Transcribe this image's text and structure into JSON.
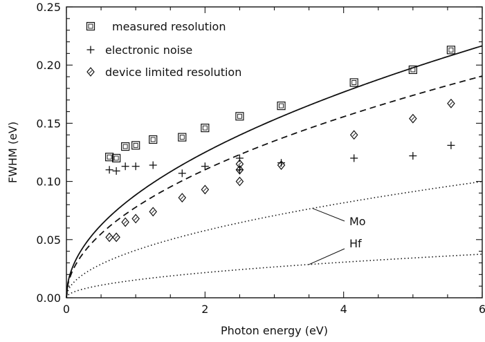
{
  "chart_data": {
    "type": "scatter",
    "title": "",
    "xlabel": "Photon energy (eV)",
    "ylabel": "FWHM (eV)",
    "xlim": [
      0,
      6
    ],
    "ylim": [
      0,
      0.25
    ],
    "xticks": [
      0,
      2,
      4,
      6
    ],
    "xtick_labels": [
      "0",
      "2",
      "4",
      "6"
    ],
    "yticks": [
      0,
      0.05,
      0.1,
      0.15,
      0.2,
      0.25
    ],
    "ytick_labels": [
      "0.00",
      "0.05",
      "0.10",
      "0.15",
      "0.20",
      "0.25"
    ],
    "grid": false,
    "legend_position": "top-left",
    "legend": [
      {
        "marker": "square",
        "label": "measured resolution"
      },
      {
        "marker": "plus",
        "label": "electronic noise"
      },
      {
        "marker": "diamond",
        "label": "device limited resolution"
      }
    ],
    "series": [
      {
        "marker": "square",
        "x": [
          0.62,
          0.72,
          0.85,
          1.0,
          1.25,
          1.67,
          2.0,
          2.5,
          3.1,
          4.15,
          5.0,
          5.55
        ],
        "y": [
          0.121,
          0.12,
          0.13,
          0.131,
          0.136,
          0.138,
          0.146,
          0.156,
          0.165,
          0.185,
          0.196,
          0.213
        ]
      },
      {
        "marker": "plus",
        "x": [
          0.62,
          0.72,
          0.85,
          1.0,
          1.25,
          1.67,
          2.0,
          2.5,
          2.5,
          3.1,
          4.15,
          5.0,
          5.55
        ],
        "y": [
          0.11,
          0.109,
          0.113,
          0.113,
          0.114,
          0.107,
          0.113,
          0.11,
          0.12,
          0.116,
          0.12,
          0.122,
          0.131
        ]
      },
      {
        "marker": "diamond",
        "x": [
          0.62,
          0.72,
          0.85,
          1.0,
          1.25,
          1.67,
          2.0,
          2.5,
          2.5,
          2.5,
          3.1,
          4.15,
          5.0,
          5.55
        ],
        "y": [
          0.052,
          0.052,
          0.065,
          0.068,
          0.074,
          0.086,
          0.093,
          0.1,
          0.11,
          0.115,
          0.114,
          0.14,
          0.154,
          0.167
        ]
      }
    ],
    "curves": [
      {
        "style": "solid",
        "a": 0.0884,
        "p": 0.5
      },
      {
        "style": "dashed",
        "a": 0.0778,
        "p": 0.5
      },
      {
        "style": "dotted",
        "a": 0.0408,
        "p": 0.5,
        "label": "Mo"
      },
      {
        "style": "dotted",
        "a": 0.0153,
        "p": 0.5,
        "label": "Hf"
      }
    ],
    "annotations": [
      {
        "text": "Mo",
        "points_to_x": 3.55
      },
      {
        "text": "Hf",
        "points_to_x": 3.5
      }
    ]
  }
}
